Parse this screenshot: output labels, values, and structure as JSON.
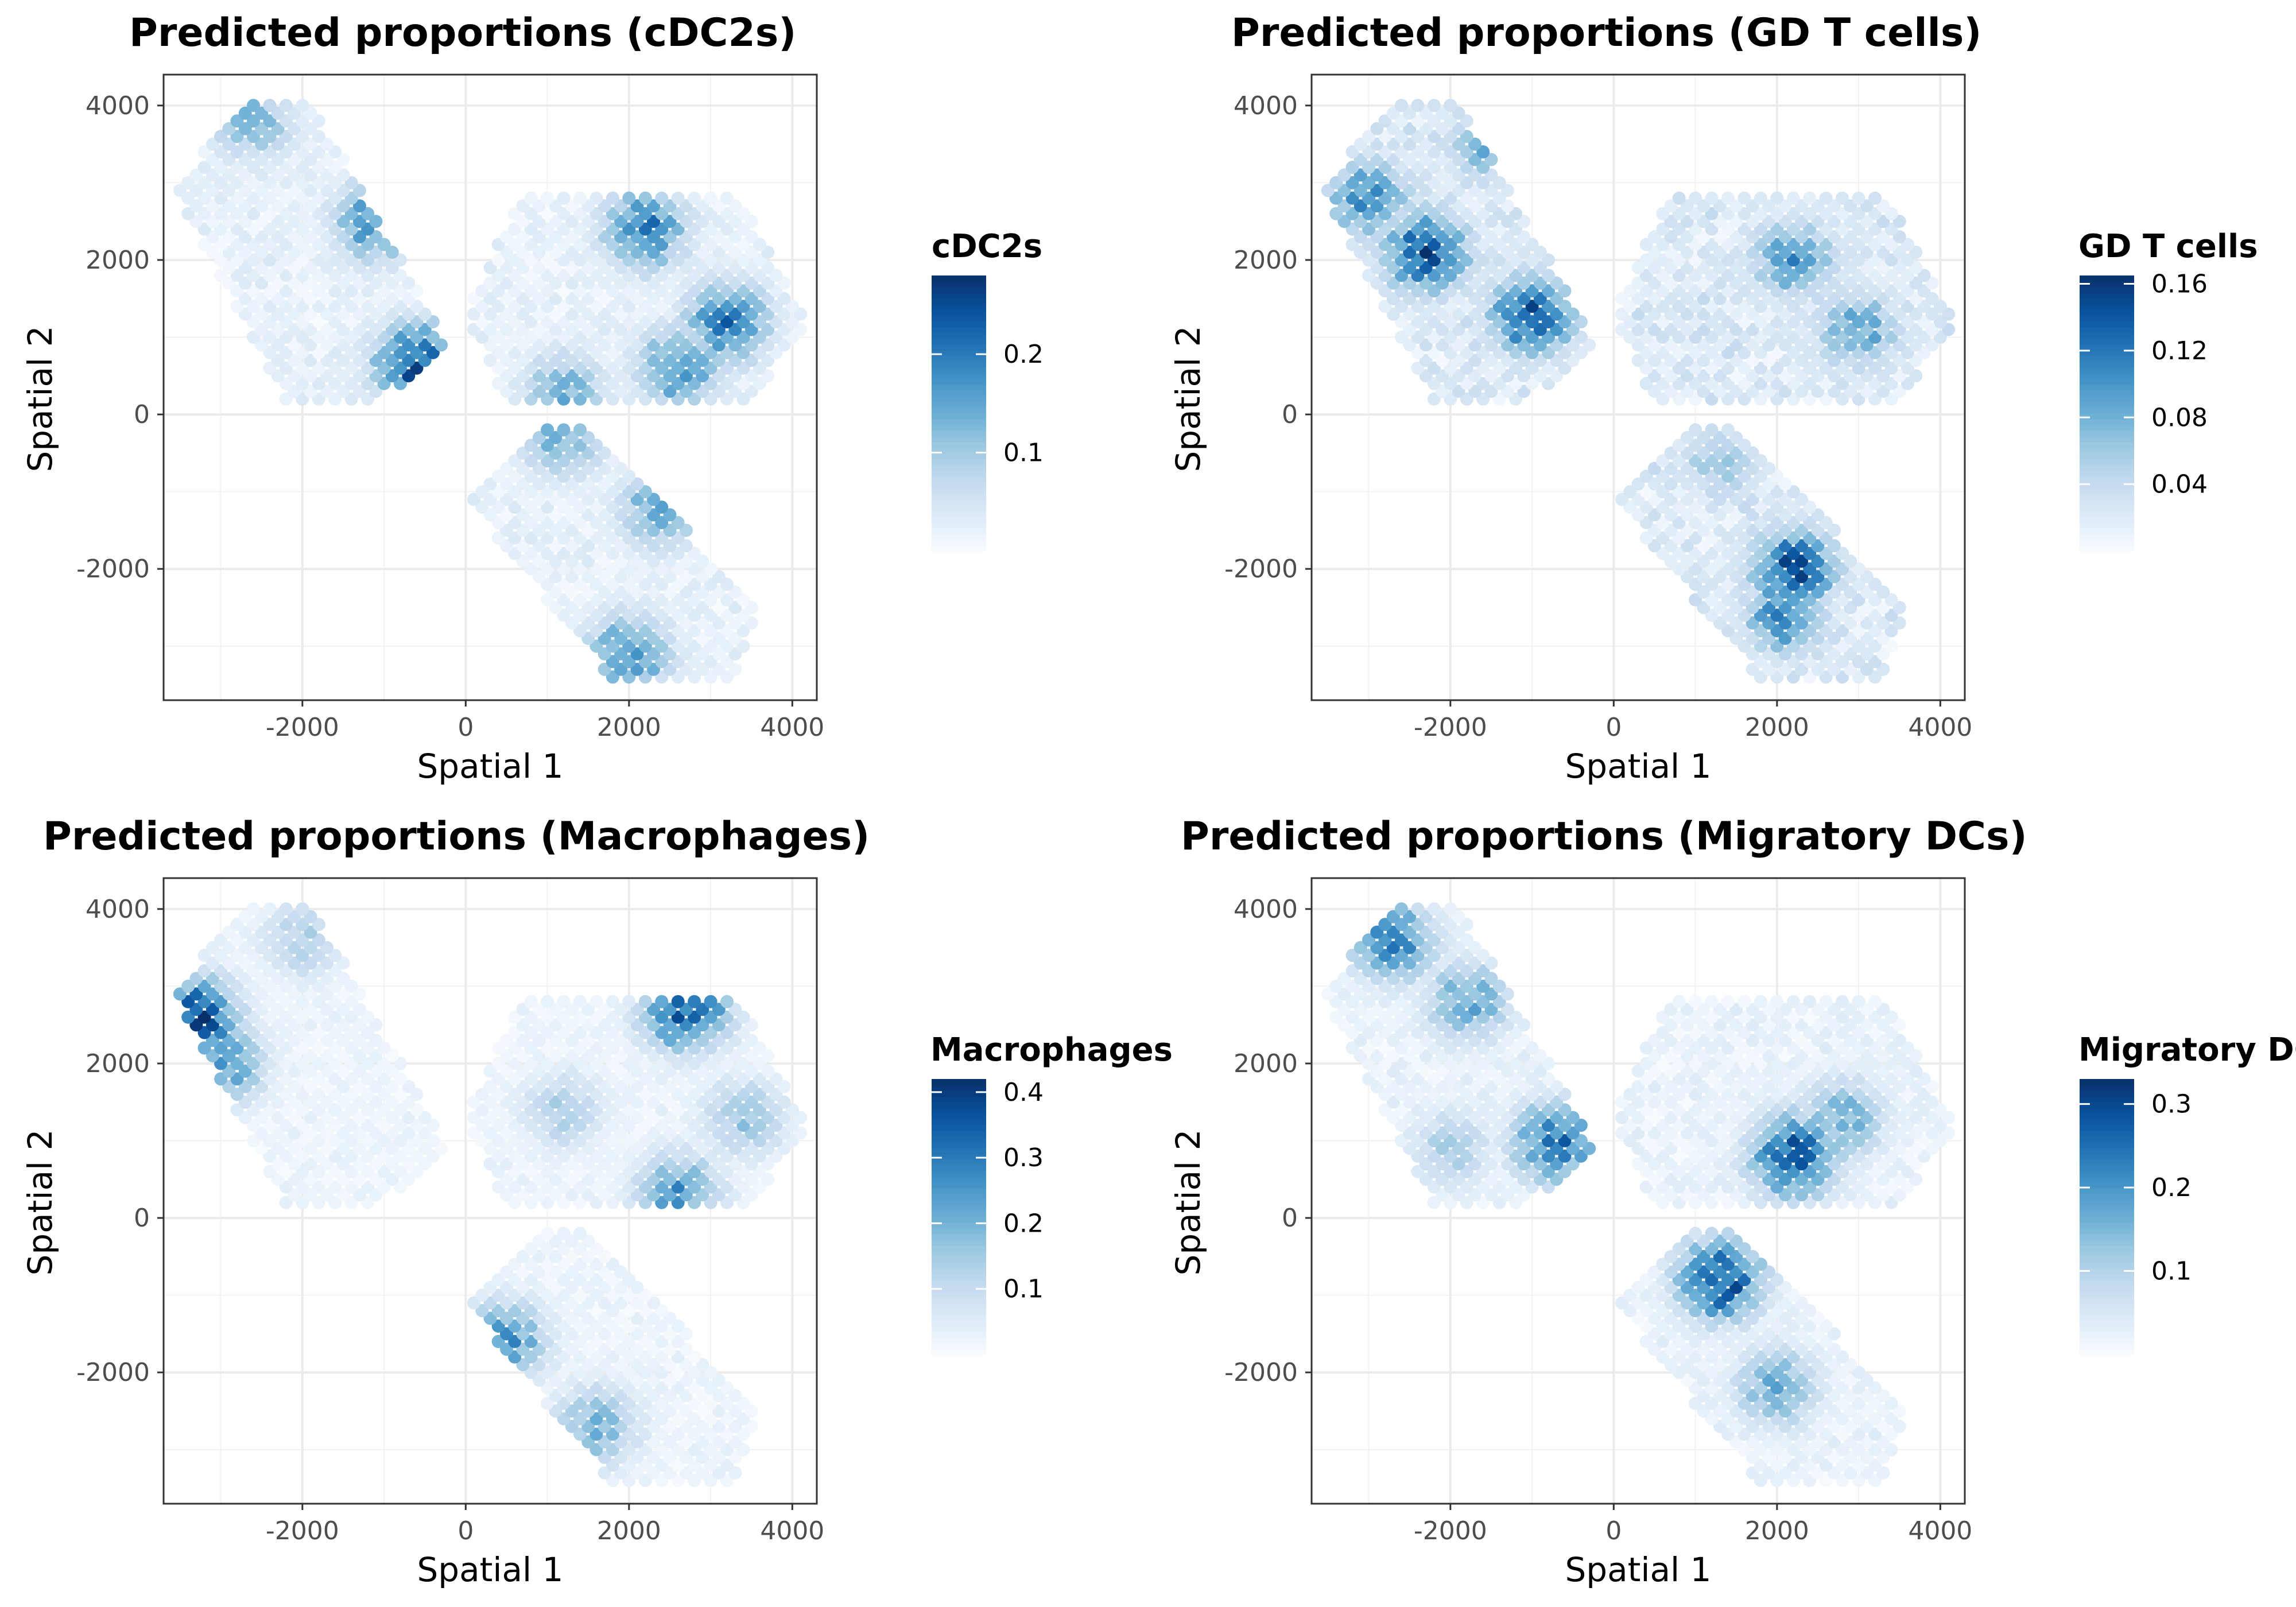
{
  "chart_data": [
    {
      "type": "scatter",
      "title": "Predicted proportions (cDC2s)",
      "xlabel": "Spatial 1",
      "ylabel": "Spatial 2",
      "xlim": [
        -3700,
        4300
      ],
      "ylim": [
        -3700,
        4400
      ],
      "xticks": [
        -2000,
        0,
        2000,
        4000
      ],
      "yticks": [
        -2000,
        0,
        2000,
        4000
      ],
      "legend": {
        "title": "cDC2s",
        "min": 0,
        "max": 0.28,
        "ticks": [
          0.1,
          0.2
        ],
        "position": "right"
      },
      "hotspots": [
        {
          "x": -600,
          "y": 650,
          "value": 0.28
        },
        {
          "x": -1100,
          "y": 2500,
          "value": 0.2
        },
        {
          "x": -2600,
          "y": 3800,
          "value": 0.14
        },
        {
          "x": 2200,
          "y": 2400,
          "value": 0.22
        },
        {
          "x": 3200,
          "y": 1200,
          "value": 0.22
        },
        {
          "x": 2600,
          "y": 600,
          "value": 0.2
        },
        {
          "x": 1200,
          "y": 300,
          "value": 0.15
        },
        {
          "x": 2400,
          "y": -1200,
          "value": 0.17
        },
        {
          "x": 2000,
          "y": -3100,
          "value": 0.2
        },
        {
          "x": 1200,
          "y": -300,
          "value": 0.15
        }
      ]
    },
    {
      "type": "scatter",
      "title": "Predicted proportions (GD T cells)",
      "xlabel": "Spatial 1",
      "ylabel": "Spatial 2",
      "xlim": [
        -3700,
        4300
      ],
      "ylim": [
        -3700,
        4400
      ],
      "xticks": [
        -2000,
        0,
        2000,
        4000
      ],
      "yticks": [
        -2000,
        0,
        2000,
        4000
      ],
      "legend": {
        "title": "GD T cells",
        "min": 0,
        "max": 0.165,
        "ticks": [
          0.04,
          0.08,
          0.12,
          0.16
        ],
        "position": "right"
      },
      "hotspots": [
        {
          "x": -2300,
          "y": 2100,
          "value": 0.16
        },
        {
          "x": -1000,
          "y": 1300,
          "value": 0.16
        },
        {
          "x": -3000,
          "y": 2800,
          "value": 0.12
        },
        {
          "x": -1500,
          "y": 3500,
          "value": 0.09
        },
        {
          "x": 2200,
          "y": 2000,
          "value": 0.11
        },
        {
          "x": 3000,
          "y": 1100,
          "value": 0.1
        },
        {
          "x": 2200,
          "y": -2000,
          "value": 0.16
        },
        {
          "x": 2100,
          "y": -2600,
          "value": 0.12
        },
        {
          "x": 1300,
          "y": -600,
          "value": 0.07
        }
      ]
    },
    {
      "type": "scatter",
      "title": "Predicted proportions (Macrophages)",
      "xlabel": "Spatial 1",
      "ylabel": "Spatial 2",
      "xlim": [
        -3700,
        4300
      ],
      "ylim": [
        -3700,
        4400
      ],
      "xticks": [
        -2000,
        0,
        2000,
        4000
      ],
      "yticks": [
        -2000,
        0,
        2000,
        4000
      ],
      "legend": {
        "title": "Macrophages",
        "min": 0,
        "max": 0.42,
        "ticks": [
          0.1,
          0.2,
          0.3,
          0.4
        ],
        "position": "right"
      },
      "hotspots": [
        {
          "x": -3300,
          "y": 2600,
          "value": 0.42
        },
        {
          "x": -3000,
          "y": 2000,
          "value": 0.28
        },
        {
          "x": 2700,
          "y": 2700,
          "value": 0.4
        },
        {
          "x": 2600,
          "y": 300,
          "value": 0.28
        },
        {
          "x": 500,
          "y": -1600,
          "value": 0.28
        },
        {
          "x": 1600,
          "y": -2700,
          "value": 0.22
        },
        {
          "x": -2000,
          "y": 3600,
          "value": 0.15
        },
        {
          "x": 1200,
          "y": 1400,
          "value": 0.15
        },
        {
          "x": 3400,
          "y": 1300,
          "value": 0.18
        }
      ]
    },
    {
      "type": "scatter",
      "title": "Predicted proportions (Migratory DCs)",
      "xlabel": "Spatial 1",
      "ylabel": "Spatial 2",
      "xlim": [
        -3700,
        4300
      ],
      "ylim": [
        -3700,
        4400
      ],
      "xticks": [
        -2000,
        0,
        2000,
        4000
      ],
      "yticks": [
        -2000,
        0,
        2000,
        4000
      ],
      "legend": {
        "title": "Migratory DCs",
        "min": 0,
        "max": 0.33,
        "ticks": [
          0.1,
          0.2,
          0.3
        ],
        "position": "right"
      },
      "hotspots": [
        {
          "x": 2200,
          "y": 800,
          "value": 0.33
        },
        {
          "x": 1300,
          "y": -800,
          "value": 0.33
        },
        {
          "x": -700,
          "y": 1000,
          "value": 0.28
        },
        {
          "x": -2700,
          "y": 3600,
          "value": 0.25
        },
        {
          "x": -1800,
          "y": 2800,
          "value": 0.2
        },
        {
          "x": 2800,
          "y": 1300,
          "value": 0.18
        },
        {
          "x": 2000,
          "y": -2200,
          "value": 0.18
        },
        {
          "x": -2000,
          "y": 900,
          "value": 0.12
        }
      ]
    }
  ]
}
